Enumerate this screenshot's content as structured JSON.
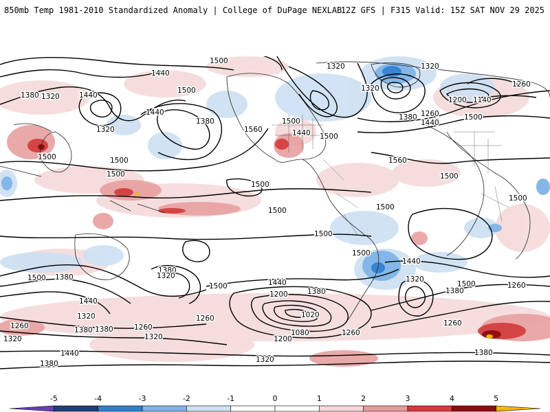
{
  "header": {
    "title": "850mb Temp 1981-2010 Standardized Anomaly | College of DuPage NEXLAB",
    "model_info": "12Z GFS | F315 Valid: 15Z SAT NOV 29 2025"
  },
  "colorbar": {
    "ticks": [
      "-5",
      "-4",
      "-3",
      "-2",
      "-1",
      "0",
      "1",
      "2",
      "3",
      "4",
      "5"
    ],
    "colors": [
      "#6a3fb8",
      "#1f3f7a",
      "#2f7fcf",
      "#7fb3e6",
      "#cfe1f3",
      "#ffffff",
      "#ffffff",
      "#f6d6d6",
      "#e79a9a",
      "#d23a3a",
      "#8c0d0d",
      "#f5b800"
    ]
  },
  "contours": {
    "labels": [
      "1440",
      "1500",
      "1380",
      "1440",
      "1500",
      "1380",
      "1320",
      "1440",
      "1440",
      "1380",
      "1320",
      "1500",
      "1560",
      "1500",
      "1500",
      "1440",
      "1500",
      "1500",
      "1320",
      "1320",
      "1380",
      "1320",
      "1200",
      "1140",
      "1260",
      "1500",
      "1380",
      "1260",
      "1440",
      "1500",
      "1560",
      "1500",
      "1500",
      "1500",
      "1500",
      "1500",
      "1440",
      "1500",
      "1380",
      "1500",
      "1320",
      "1380",
      "1320",
      "1440",
      "1200",
      "1380",
      "1020",
      "1080",
      "1260",
      "1200",
      "1320",
      "1260",
      "1500",
      "1380",
      "1260",
      "1380",
      "1320",
      "1260",
      "1320",
      "1500",
      "1440",
      "1260",
      "1380",
      "1320",
      "1380",
      "1440",
      "1380",
      "1260"
    ]
  }
}
